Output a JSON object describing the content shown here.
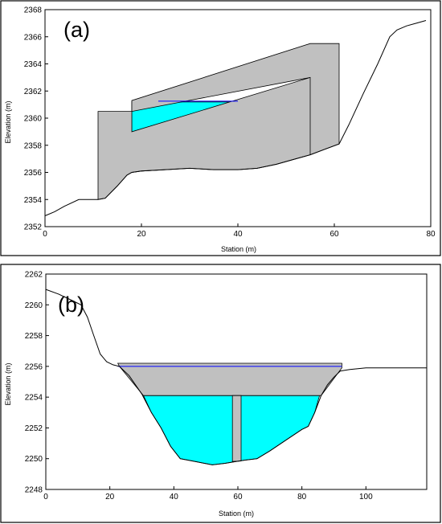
{
  "chart_data": [
    {
      "type": "area",
      "panel_label": "(a)",
      "xlabel": "Station (m)",
      "ylabel": "Elevation (m)",
      "xlim": [
        0,
        80
      ],
      "ylim": [
        2352,
        2368
      ],
      "xticks": [
        "0",
        "20",
        "40",
        "60",
        "80"
      ],
      "yticks": [
        "2352",
        "2354",
        "2356",
        "2358",
        "2360",
        "2362",
        "2364",
        "2366",
        "2368"
      ],
      "colors": {
        "water": "#00FFFF",
        "structure": "#C0C0C0",
        "water_line": "#0000FF",
        "ground": "#000000",
        "frame": "#000000"
      },
      "ground": [
        [
          0,
          2352.8
        ],
        [
          2,
          2353.1
        ],
        [
          4,
          2353.5
        ],
        [
          7,
          2354.0
        ],
        [
          11,
          2354.0
        ],
        [
          12.5,
          2354.1
        ],
        [
          15,
          2355.0
        ],
        [
          17,
          2355.8
        ],
        [
          18,
          2356.0
        ],
        [
          20,
          2356.1
        ],
        [
          25,
          2356.2
        ],
        [
          30,
          2356.3
        ],
        [
          35,
          2356.2
        ],
        [
          40,
          2356.2
        ],
        [
          44,
          2356.3
        ],
        [
          48,
          2356.6
        ],
        [
          52,
          2357.0
        ],
        [
          55,
          2357.3
        ],
        [
          58,
          2357.7
        ],
        [
          61,
          2358.1
        ],
        [
          63,
          2359.5
        ],
        [
          66,
          2361.8
        ],
        [
          69,
          2364.0
        ],
        [
          71.5,
          2366.0
        ],
        [
          73,
          2366.5
        ],
        [
          75,
          2366.8
        ],
        [
          77,
          2367.0
        ],
        [
          79,
          2367.2
        ]
      ],
      "water_area": [
        [
          18,
          2361.2
        ],
        [
          55,
          2361.2
        ],
        [
          55,
          2357.3
        ],
        [
          52,
          2357.0
        ],
        [
          48,
          2356.6
        ],
        [
          44,
          2356.3
        ],
        [
          40,
          2356.2
        ],
        [
          35,
          2356.2
        ],
        [
          30,
          2356.3
        ],
        [
          25,
          2356.2
        ],
        [
          20,
          2356.1
        ],
        [
          18,
          2356.0
        ]
      ],
      "structure": [
        [
          11,
          2360.5
        ],
        [
          18,
          2360.5
        ],
        [
          55,
          2363.0
        ],
        [
          55,
          2357.3
        ],
        [
          58,
          2357.7
        ],
        [
          61,
          2358.1
        ],
        [
          61,
          2365.5
        ],
        [
          55,
          2365.5
        ],
        [
          18,
          2361.3
        ],
        [
          18,
          2359.0
        ],
        [
          55,
          2363.0
        ],
        [
          55,
          2357.3
        ],
        [
          52,
          2357.0
        ],
        [
          48,
          2356.6
        ],
        [
          44,
          2356.3
        ],
        [
          40,
          2356.2
        ],
        [
          35,
          2356.2
        ],
        [
          30,
          2356.3
        ],
        [
          25,
          2356.2
        ],
        [
          20,
          2356.1
        ],
        [
          18,
          2356.0
        ],
        [
          17,
          2355.8
        ],
        [
          15,
          2355.0
        ],
        [
          12.5,
          2354.1
        ],
        [
          11,
          2354.0
        ]
      ],
      "water_surface": [
        [
          23.5,
          2361.25
        ],
        [
          40,
          2361.25
        ]
      ]
    },
    {
      "type": "area",
      "panel_label": "(b)",
      "xlabel": "Station (m)",
      "ylabel": "Elevation (m)",
      "xlim": [
        0,
        119
      ],
      "ylim": [
        2248,
        2262
      ],
      "xticks": [
        "0",
        "20",
        "40",
        "60",
        "80",
        "100"
      ],
      "yticks": [
        "2248",
        "2250",
        "2252",
        "2254",
        "2256",
        "2258",
        "2260",
        "2262"
      ],
      "colors": {
        "water": "#00FFFF",
        "structure": "#C0C0C0",
        "water_line": "#0000FF",
        "ground": "#000000",
        "frame": "#000000"
      },
      "ground": [
        [
          0,
          2261.0
        ],
        [
          4,
          2260.7
        ],
        [
          8,
          2260.3
        ],
        [
          11,
          2260.0
        ],
        [
          13,
          2259.2
        ],
        [
          15,
          2258.0
        ],
        [
          17,
          2256.8
        ],
        [
          19,
          2256.3
        ],
        [
          21,
          2256.1
        ],
        [
          23,
          2256.0
        ],
        [
          26,
          2255.4
        ],
        [
          30,
          2254.2
        ],
        [
          33,
          2253.0
        ],
        [
          36,
          2252.0
        ],
        [
          39,
          2250.8
        ],
        [
          42,
          2250.0
        ],
        [
          47,
          2249.8
        ],
        [
          52,
          2249.6
        ],
        [
          56,
          2249.7
        ],
        [
          59,
          2249.8
        ],
        [
          62,
          2249.9
        ],
        [
          66,
          2250.0
        ],
        [
          70,
          2250.5
        ],
        [
          75,
          2251.2
        ],
        [
          80,
          2251.9
        ],
        [
          82,
          2252.1
        ],
        [
          84,
          2253.0
        ],
        [
          86,
          2254.1
        ],
        [
          88,
          2254.8
        ],
        [
          90,
          2255.3
        ],
        [
          92,
          2255.7
        ],
        [
          95,
          2255.8
        ],
        [
          100,
          2255.9
        ],
        [
          105,
          2255.9
        ],
        [
          110,
          2255.9
        ],
        [
          115,
          2255.9
        ],
        [
          119,
          2255.9
        ]
      ],
      "water_area": [
        [
          30.5,
          2254.1
        ],
        [
          85.5,
          2254.1
        ],
        [
          84,
          2253.0
        ],
        [
          82,
          2252.1
        ],
        [
          80,
          2251.9
        ],
        [
          75,
          2251.2
        ],
        [
          70,
          2250.5
        ],
        [
          66,
          2250.0
        ],
        [
          62,
          2249.9
        ],
        [
          59,
          2249.8
        ],
        [
          56,
          2249.7
        ],
        [
          52,
          2249.6
        ],
        [
          47,
          2249.8
        ],
        [
          42,
          2250.0
        ],
        [
          39,
          2250.8
        ],
        [
          36,
          2252.0
        ],
        [
          33,
          2253.0
        ]
      ],
      "structure": [
        [
          22.5,
          2256.2
        ],
        [
          92.5,
          2256.2
        ],
        [
          92.5,
          2255.9
        ],
        [
          86,
          2254.1
        ],
        [
          30.5,
          2254.1
        ],
        [
          23,
          2256.0
        ]
      ],
      "pier": [
        [
          58.3,
          2254.1
        ],
        [
          61,
          2254.1
        ],
        [
          61,
          2249.85
        ],
        [
          58.3,
          2249.82
        ]
      ],
      "water_surface": [
        [
          22.5,
          2256.0
        ],
        [
          92.5,
          2256.0
        ]
      ]
    }
  ]
}
